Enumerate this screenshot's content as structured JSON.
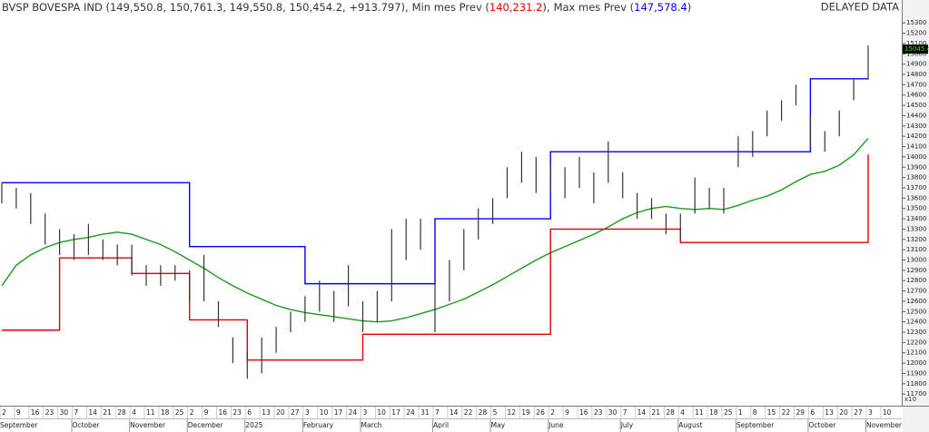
{
  "chart_data": {
    "type": "ohlc",
    "title": "BVSP BOVESPA IND (149,550.8, 150,761.3, 149,550.8, 150,454.2, +913.797),",
    "min_text": "Min mes Prev (",
    "min_value": "140,231.2",
    "sep": "),",
    "max_text": "Max mes Prev (",
    "max_value": "147,578.4",
    "end": ")",
    "delayed": "DELAYED DATA",
    "scale_note": "x10",
    "last": 15045.4,
    "categories": [
      "2",
      "9",
      "16",
      "23",
      "30",
      "7",
      "14",
      "21",
      "28",
      "4",
      "11",
      "18",
      "25",
      "2",
      "9",
      "16",
      "23",
      "6",
      "13",
      "20",
      "27",
      "3",
      "10",
      "17",
      "24",
      "3",
      "10",
      "17",
      "24",
      "31",
      "7",
      "14",
      "22",
      "28",
      "5",
      "12",
      "19",
      "26",
      "2",
      "9",
      "16",
      "23",
      "30",
      "7",
      "14",
      "21",
      "28",
      "4",
      "11",
      "18",
      "25",
      "1",
      "8",
      "15",
      "22",
      "29",
      "6",
      "13",
      "20",
      "27",
      "3",
      "10"
    ],
    "month_labels": [
      "September",
      null,
      null,
      null,
      null,
      "October",
      null,
      null,
      null,
      "November",
      null,
      null,
      null,
      "December",
      null,
      null,
      null,
      "2025",
      null,
      null,
      null,
      "February",
      null,
      null,
      null,
      "March",
      null,
      null,
      null,
      null,
      "April",
      null,
      null,
      null,
      "May",
      null,
      null,
      null,
      "June",
      null,
      null,
      null,
      null,
      "July",
      null,
      null,
      null,
      "August",
      null,
      null,
      null,
      "September",
      null,
      null,
      null,
      null,
      "October",
      null,
      null,
      null,
      "November",
      null
    ],
    "high": [
      13750,
      13700,
      13650,
      13450,
      13300,
      13250,
      13350,
      13200,
      13150,
      13150,
      12950,
      12950,
      12950,
      12900,
      13050,
      12600,
      12250,
      12100,
      12250,
      12350,
      12500,
      12650,
      12800,
      12700,
      12950,
      12600,
      12700,
      13300,
      13400,
      13400,
      12800,
      13000,
      13300,
      13500,
      13600,
      13900,
      14050,
      14000,
      13950,
      13900,
      14000,
      13850,
      14150,
      13850,
      13650,
      13600,
      13450,
      13450,
      13800,
      13700,
      13700,
      14200,
      14250,
      14450,
      14550,
      14700,
      14400,
      14250,
      14450,
      14750,
      15080,
      null
    ],
    "low": [
      13550,
      13500,
      13350,
      13150,
      13050,
      13000,
      13050,
      13000,
      12950,
      12850,
      12750,
      12750,
      12800,
      12600,
      12600,
      12350,
      12000,
      11850,
      11900,
      12100,
      12300,
      12400,
      12500,
      12400,
      12550,
      12300,
      12400,
      12600,
      13000,
      13100,
      12300,
      12600,
      12900,
      13200,
      13350,
      13600,
      13750,
      13650,
      13650,
      13600,
      13700,
      13550,
      13750,
      13600,
      13400,
      13400,
      13250,
      13200,
      13450,
      13500,
      13450,
      13900,
      14000,
      14200,
      14350,
      14500,
      14100,
      14050,
      14200,
      14550,
      14750,
      null
    ],
    "series": [
      {
        "color": "#1a9a1a",
        "values": [
          12750,
          12950,
          13050,
          13120,
          13170,
          13200,
          13220,
          13250,
          13270,
          13250,
          13200,
          13150,
          13080,
          13000,
          12920,
          12830,
          12750,
          12680,
          12620,
          12560,
          12520,
          12490,
          12470,
          12450,
          12430,
          12410,
          12400,
          12410,
          12440,
          12480,
          12520,
          12570,
          12620,
          12690,
          12760,
          12840,
          12920,
          13000,
          13070,
          13130,
          13190,
          13250,
          13320,
          13400,
          13460,
          13500,
          13520,
          13500,
          13490,
          13500,
          13490,
          13530,
          13580,
          13620,
          13680,
          13760,
          13830,
          13860,
          13920,
          14020,
          14180,
          null
        ]
      },
      {
        "color": "#0000ff",
        "step": true,
        "values": [
          13750,
          13750,
          13750,
          13750,
          13750,
          13750,
          13750,
          13750,
          13750,
          13750,
          13750,
          13750,
          13750,
          13130,
          13130,
          13130,
          13130,
          13130,
          13130,
          13130,
          13130,
          12770,
          12770,
          12770,
          12770,
          12770,
          12770,
          12770,
          12770,
          12770,
          13400,
          13400,
          13400,
          13400,
          13400,
          13400,
          13400,
          13400,
          14050,
          14050,
          14050,
          14050,
          14050,
          14050,
          14050,
          14050,
          14050,
          14050,
          14050,
          14050,
          14050,
          14050,
          14050,
          14050,
          14050,
          14050,
          14757.8,
          14757.8,
          14757.8,
          14757.8,
          14757.8,
          null
        ]
      },
      {
        "color": "#e00000",
        "step": true,
        "values": [
          12320,
          12320,
          12320,
          12320,
          13020,
          13020,
          13020,
          13020,
          13020,
          12870,
          12870,
          12870,
          12870,
          12420,
          12420,
          12420,
          12420,
          12030,
          12030,
          12030,
          12030,
          12030,
          12030,
          12030,
          12030,
          12280,
          12280,
          12280,
          12280,
          12280,
          12280,
          12280,
          12280,
          12280,
          12280,
          12280,
          12280,
          12280,
          13300,
          13300,
          13300,
          13300,
          13300,
          13300,
          13300,
          13300,
          13300,
          13170,
          13170,
          13170,
          13170,
          13170,
          13170,
          13170,
          13170,
          13170,
          13170,
          13170,
          13170,
          13170,
          14023.1,
          null
        ]
      }
    ],
    "ylim": [
      11640,
      15390
    ],
    "yticks": [
      11700,
      11800,
      11900,
      12000,
      12100,
      12200,
      12300,
      12400,
      12500,
      12600,
      12700,
      12800,
      12900,
      13000,
      13100,
      13200,
      13300,
      13400,
      13500,
      13600,
      13700,
      13800,
      13900,
      14000,
      14100,
      14200,
      14300,
      14400,
      14500,
      14600,
      14700,
      14800,
      14900,
      15000,
      15100,
      15200,
      15300
    ]
  }
}
